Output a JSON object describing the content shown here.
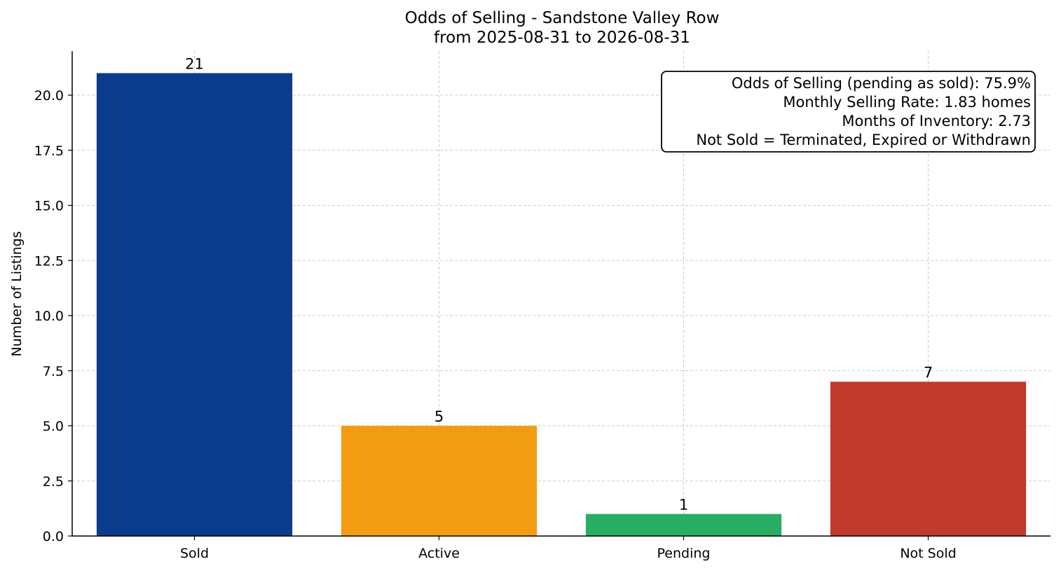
{
  "chart_data": {
    "type": "bar",
    "title": "Odds of Selling - Sandstone Valley Row",
    "subtitle": "from 2025-08-31 to 2026-08-31",
    "xlabel": "",
    "ylabel": "Number of Listings",
    "categories": [
      "Sold",
      "Active",
      "Pending",
      "Not Sold"
    ],
    "values": [
      21,
      5,
      1,
      7
    ],
    "colors": [
      "#0b3b8c",
      "#f39c12",
      "#27ae60",
      "#c0392b"
    ],
    "ylim": [
      0,
      22
    ],
    "yticks": [
      0.0,
      2.5,
      5.0,
      7.5,
      10.0,
      12.5,
      15.0,
      17.5,
      20.0
    ],
    "ytick_labels": [
      "0.0",
      "2.5",
      "5.0",
      "7.5",
      "10.0",
      "12.5",
      "15.0",
      "17.5",
      "20.0"
    ],
    "grid": true,
    "annotation_box": {
      "placement": "top-right",
      "lines": [
        "Odds of Selling (pending as sold): 75.9%",
        "Monthly Selling Rate: 1.83 homes",
        "Months of Inventory: 2.73",
        "Not Sold = Terminated, Expired or Withdrawn"
      ]
    }
  }
}
